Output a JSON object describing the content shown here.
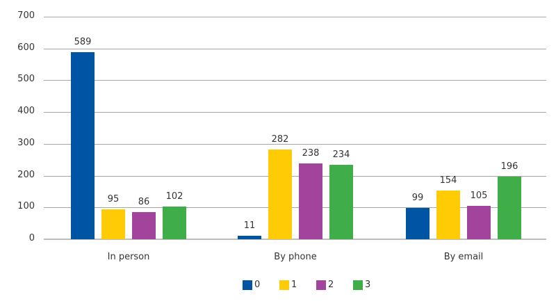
{
  "chart_data": {
    "type": "bar",
    "title": "",
    "xlabel": "",
    "ylabel": "",
    "categories": [
      "In person",
      "By phone",
      "By email"
    ],
    "series": [
      {
        "name": "0",
        "color": "#0054a4",
        "values": [
          589,
          11,
          99
        ]
      },
      {
        "name": "1",
        "color": "#ffcb05",
        "values": [
          95,
          282,
          154
        ]
      },
      {
        "name": "2",
        "color": "#a2449c",
        "values": [
          86,
          238,
          105
        ]
      },
      {
        "name": "3",
        "color": "#3fae49",
        "values": [
          102,
          234,
          196
        ]
      }
    ],
    "ylim": [
      0,
      700
    ],
    "yticks": [
      0,
      100,
      200,
      300,
      400,
      500,
      600,
      700
    ],
    "grid": true,
    "legend_position": "bottom",
    "data_labels": true
  }
}
